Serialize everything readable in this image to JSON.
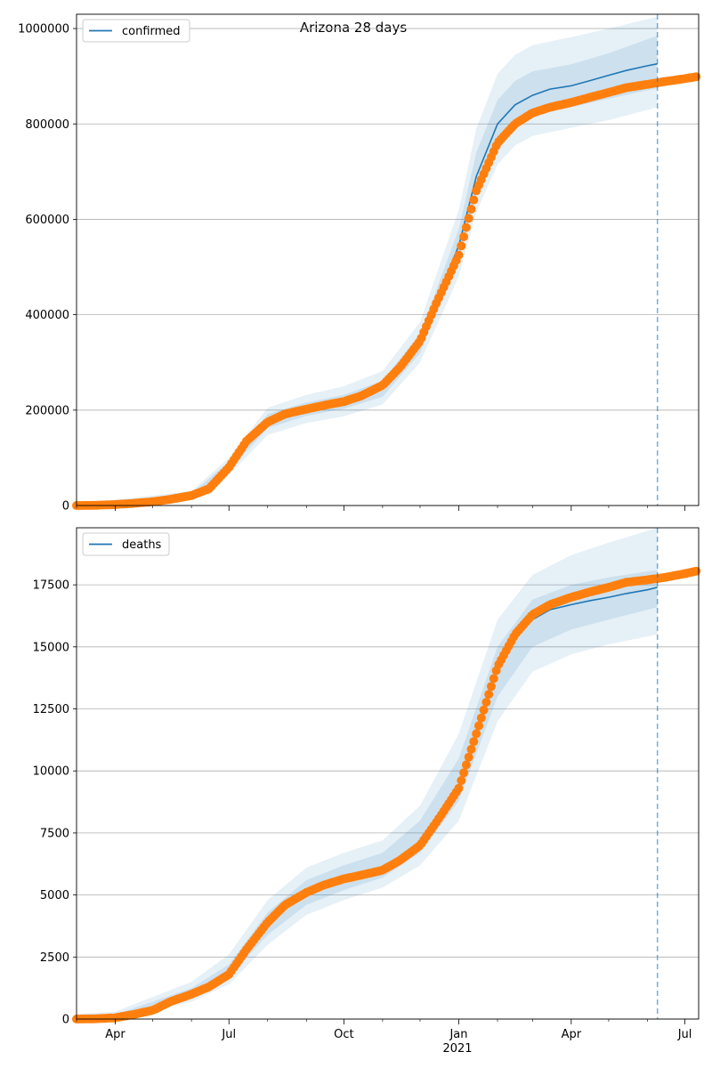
{
  "chart_data": {
    "type": "line",
    "title": "Arizona 28 days",
    "x_ticks": [
      "Apr",
      "Jul",
      "Oct",
      "Jan",
      "Apr",
      "Jul"
    ],
    "x_year_label": "2021",
    "forecast_line_date": "2021-06-09",
    "panels": [
      {
        "legend": "confirmed",
        "ylim": [
          0,
          1030000
        ],
        "y_ticks": [
          0,
          200000,
          400000,
          600000,
          800000,
          1000000
        ],
        "y_tick_labels": [
          "0",
          "200000",
          "400000",
          "600000",
          "800000",
          "1000000"
        ],
        "observed": [
          [
            "2020-03-01",
            0
          ],
          [
            "2020-03-15",
            300
          ],
          [
            "2020-04-01",
            2000
          ],
          [
            "2020-04-15",
            4500
          ],
          [
            "2020-05-01",
            8000
          ],
          [
            "2020-05-15",
            13000
          ],
          [
            "2020-06-01",
            21000
          ],
          [
            "2020-06-15",
            35000
          ],
          [
            "2020-07-01",
            80000
          ],
          [
            "2020-07-15",
            135000
          ],
          [
            "2020-08-01",
            175000
          ],
          [
            "2020-08-15",
            192000
          ],
          [
            "2020-09-01",
            202000
          ],
          [
            "2020-09-15",
            210000
          ],
          [
            "2020-10-01",
            218000
          ],
          [
            "2020-10-15",
            230000
          ],
          [
            "2020-11-01",
            252000
          ],
          [
            "2020-11-15",
            290000
          ],
          [
            "2020-12-01",
            345000
          ],
          [
            "2020-12-15",
            430000
          ],
          [
            "2021-01-01",
            525000
          ],
          [
            "2021-01-15",
            660000
          ],
          [
            "2021-02-01",
            760000
          ],
          [
            "2021-02-15",
            800000
          ],
          [
            "2021-03-01",
            823000
          ],
          [
            "2021-03-15",
            835000
          ],
          [
            "2021-04-01",
            845000
          ],
          [
            "2021-04-15",
            855000
          ],
          [
            "2021-05-01",
            866000
          ],
          [
            "2021-05-15",
            876000
          ],
          [
            "2021-06-01",
            883000
          ],
          [
            "2021-06-15",
            889000
          ],
          [
            "2021-07-01",
            895000
          ],
          [
            "2021-07-10",
            899000
          ]
        ],
        "forecast": [
          [
            "2020-12-25",
            500000
          ],
          [
            "2021-01-01",
            545000
          ],
          [
            "2021-01-15",
            690000
          ],
          [
            "2021-02-01",
            800000
          ],
          [
            "2021-02-15",
            840000
          ],
          [
            "2021-03-01",
            860000
          ],
          [
            "2021-03-15",
            873000
          ],
          [
            "2021-04-01",
            880000
          ],
          [
            "2021-04-15",
            890000
          ],
          [
            "2021-05-01",
            902000
          ],
          [
            "2021-05-15",
            912000
          ],
          [
            "2021-06-01",
            922000
          ],
          [
            "2021-06-09",
            926000
          ]
        ],
        "band_outer_upper": [
          [
            "2020-03-01",
            3000
          ],
          [
            "2020-06-01",
            30000
          ],
          [
            "2020-07-01",
            100000
          ],
          [
            "2020-08-01",
            205000
          ],
          [
            "2020-09-01",
            232000
          ],
          [
            "2020-10-01",
            250000
          ],
          [
            "2020-11-01",
            282000
          ],
          [
            "2020-12-01",
            385000
          ],
          [
            "2021-01-01",
            620000
          ],
          [
            "2021-01-15",
            790000
          ],
          [
            "2021-02-01",
            905000
          ],
          [
            "2021-02-15",
            945000
          ],
          [
            "2021-03-01",
            965000
          ],
          [
            "2021-04-01",
            982000
          ],
          [
            "2021-05-01",
            1000000
          ],
          [
            "2021-06-09",
            1025000
          ]
        ],
        "band_inner_upper": [
          [
            "2020-03-01",
            1500
          ],
          [
            "2020-06-01",
            25000
          ],
          [
            "2020-07-01",
            92000
          ],
          [
            "2020-08-01",
            192000
          ],
          [
            "2020-09-01",
            216000
          ],
          [
            "2020-10-01",
            232000
          ],
          [
            "2020-11-01",
            262000
          ],
          [
            "2020-12-01",
            360000
          ],
          [
            "2021-01-01",
            580000
          ],
          [
            "2021-01-15",
            740000
          ],
          [
            "2021-02-01",
            850000
          ],
          [
            "2021-02-15",
            890000
          ],
          [
            "2021-03-01",
            910000
          ],
          [
            "2021-04-01",
            925000
          ],
          [
            "2021-05-01",
            948000
          ],
          [
            "2021-06-09",
            985000
          ]
        ],
        "band_inner_lower": [
          [
            "2020-03-01",
            0
          ],
          [
            "2020-06-01",
            17000
          ],
          [
            "2020-07-01",
            74000
          ],
          [
            "2020-08-01",
            162000
          ],
          [
            "2020-09-01",
            188000
          ],
          [
            "2020-10-01",
            203000
          ],
          [
            "2020-11-01",
            228000
          ],
          [
            "2020-12-01",
            320000
          ],
          [
            "2021-01-01",
            515000
          ],
          [
            "2021-01-15",
            660000
          ],
          [
            "2021-02-01",
            765000
          ],
          [
            "2021-02-15",
            802000
          ],
          [
            "2021-03-01",
            818000
          ],
          [
            "2021-04-01",
            835000
          ],
          [
            "2021-05-01",
            853000
          ],
          [
            "2021-06-09",
            875000
          ]
        ],
        "band_outer_lower": [
          [
            "2020-03-01",
            0
          ],
          [
            "2020-06-01",
            12000
          ],
          [
            "2020-07-01",
            64000
          ],
          [
            "2020-08-01",
            148000
          ],
          [
            "2020-09-01",
            173000
          ],
          [
            "2020-10-01",
            187000
          ],
          [
            "2020-11-01",
            212000
          ],
          [
            "2020-12-01",
            300000
          ],
          [
            "2021-01-01",
            480000
          ],
          [
            "2021-01-15",
            615000
          ],
          [
            "2021-02-01",
            715000
          ],
          [
            "2021-02-15",
            755000
          ],
          [
            "2021-03-01",
            775000
          ],
          [
            "2021-04-01",
            792000
          ],
          [
            "2021-05-01",
            808000
          ],
          [
            "2021-06-09",
            835000
          ]
        ]
      },
      {
        "legend": "deaths",
        "ylim": [
          0,
          19800
        ],
        "y_ticks": [
          0,
          2500,
          5000,
          7500,
          10000,
          12500,
          15000,
          17500
        ],
        "y_tick_labels": [
          "0",
          "2500",
          "5000",
          "7500",
          "10000",
          "12500",
          "15000",
          "17500"
        ],
        "observed": [
          [
            "2020-03-01",
            0
          ],
          [
            "2020-03-15",
            10
          ],
          [
            "2020-04-01",
            50
          ],
          [
            "2020-04-15",
            180
          ],
          [
            "2020-05-01",
            350
          ],
          [
            "2020-05-15",
            700
          ],
          [
            "2020-06-01",
            1000
          ],
          [
            "2020-06-15",
            1300
          ],
          [
            "2020-07-01",
            1800
          ],
          [
            "2020-07-15",
            2800
          ],
          [
            "2020-08-01",
            3900
          ],
          [
            "2020-08-15",
            4600
          ],
          [
            "2020-09-01",
            5100
          ],
          [
            "2020-09-15",
            5400
          ],
          [
            "2020-10-01",
            5650
          ],
          [
            "2020-10-15",
            5800
          ],
          [
            "2020-11-01",
            6000
          ],
          [
            "2020-11-15",
            6400
          ],
          [
            "2020-12-01",
            7000
          ],
          [
            "2020-12-15",
            8000
          ],
          [
            "2021-01-01",
            9300
          ],
          [
            "2021-01-15",
            11500
          ],
          [
            "2021-02-01",
            14200
          ],
          [
            "2021-02-15",
            15500
          ],
          [
            "2021-03-01",
            16300
          ],
          [
            "2021-03-15",
            16700
          ],
          [
            "2021-04-01",
            17000
          ],
          [
            "2021-04-15",
            17200
          ],
          [
            "2021-05-01",
            17400
          ],
          [
            "2021-05-15",
            17600
          ],
          [
            "2021-06-01",
            17700
          ],
          [
            "2021-06-15",
            17800
          ],
          [
            "2021-07-01",
            17950
          ],
          [
            "2021-07-10",
            18050
          ]
        ],
        "forecast": [
          [
            "2021-01-25",
            13200
          ],
          [
            "2021-02-01",
            14300
          ],
          [
            "2021-02-15",
            15500
          ],
          [
            "2021-03-01",
            16100
          ],
          [
            "2021-03-15",
            16500
          ],
          [
            "2021-04-01",
            16700
          ],
          [
            "2021-04-15",
            16850
          ],
          [
            "2021-05-01",
            17000
          ],
          [
            "2021-05-15",
            17150
          ],
          [
            "2021-06-01",
            17300
          ],
          [
            "2021-06-09",
            17400
          ]
        ],
        "band_outer_upper": [
          [
            "2020-03-01",
            200
          ],
          [
            "2020-04-01",
            300
          ],
          [
            "2020-06-01",
            1500
          ],
          [
            "2020-07-01",
            2600
          ],
          [
            "2020-08-01",
            4800
          ],
          [
            "2020-09-01",
            6100
          ],
          [
            "2020-10-01",
            6700
          ],
          [
            "2020-11-01",
            7200
          ],
          [
            "2020-12-01",
            8600
          ],
          [
            "2021-01-01",
            11500
          ],
          [
            "2021-02-01",
            16100
          ],
          [
            "2021-03-01",
            17900
          ],
          [
            "2021-04-01",
            18700
          ],
          [
            "2021-05-01",
            19200
          ],
          [
            "2021-06-09",
            19800
          ]
        ],
        "band_inner_upper": [
          [
            "2020-03-01",
            100
          ],
          [
            "2020-04-01",
            180
          ],
          [
            "2020-06-01",
            1250
          ],
          [
            "2020-07-01",
            2200
          ],
          [
            "2020-08-01",
            4300
          ],
          [
            "2020-09-01",
            5600
          ],
          [
            "2020-10-01",
            6200
          ],
          [
            "2020-11-01",
            6700
          ],
          [
            "2020-12-01",
            8000
          ],
          [
            "2021-01-01",
            10500
          ],
          [
            "2021-02-01",
            15000
          ],
          [
            "2021-03-01",
            16900
          ],
          [
            "2021-04-01",
            17500
          ],
          [
            "2021-05-01",
            17800
          ],
          [
            "2021-06-09",
            18100
          ]
        ],
        "band_inner_lower": [
          [
            "2020-03-01",
            0
          ],
          [
            "2020-04-01",
            40
          ],
          [
            "2020-06-01",
            900
          ],
          [
            "2020-07-01",
            1700
          ],
          [
            "2020-08-01",
            3400
          ],
          [
            "2020-09-01",
            4600
          ],
          [
            "2020-10-01",
            5200
          ],
          [
            "2020-11-01",
            5700
          ],
          [
            "2020-12-01",
            6700
          ],
          [
            "2021-01-01",
            8800
          ],
          [
            "2021-02-01",
            13000
          ],
          [
            "2021-03-01",
            15000
          ],
          [
            "2021-04-01",
            15700
          ],
          [
            "2021-05-01",
            16100
          ],
          [
            "2021-06-09",
            16600
          ]
        ],
        "band_outer_lower": [
          [
            "2020-03-01",
            0
          ],
          [
            "2020-04-01",
            0
          ],
          [
            "2020-06-01",
            700
          ],
          [
            "2020-07-01",
            1400
          ],
          [
            "2020-08-01",
            3000
          ],
          [
            "2020-09-01",
            4200
          ],
          [
            "2020-10-01",
            4800
          ],
          [
            "2020-11-01",
            5300
          ],
          [
            "2020-12-01",
            6200
          ],
          [
            "2021-01-01",
            8000
          ],
          [
            "2021-02-01",
            12000
          ],
          [
            "2021-03-01",
            14000
          ],
          [
            "2021-04-01",
            14700
          ],
          [
            "2021-05-01",
            15100
          ],
          [
            "2021-06-09",
            15500
          ]
        ]
      }
    ],
    "colors": {
      "forecast_line": "#1f77b4",
      "observed": "#ff7f0e",
      "band": "#1f77b4",
      "grid": "#b0b0b0"
    }
  }
}
